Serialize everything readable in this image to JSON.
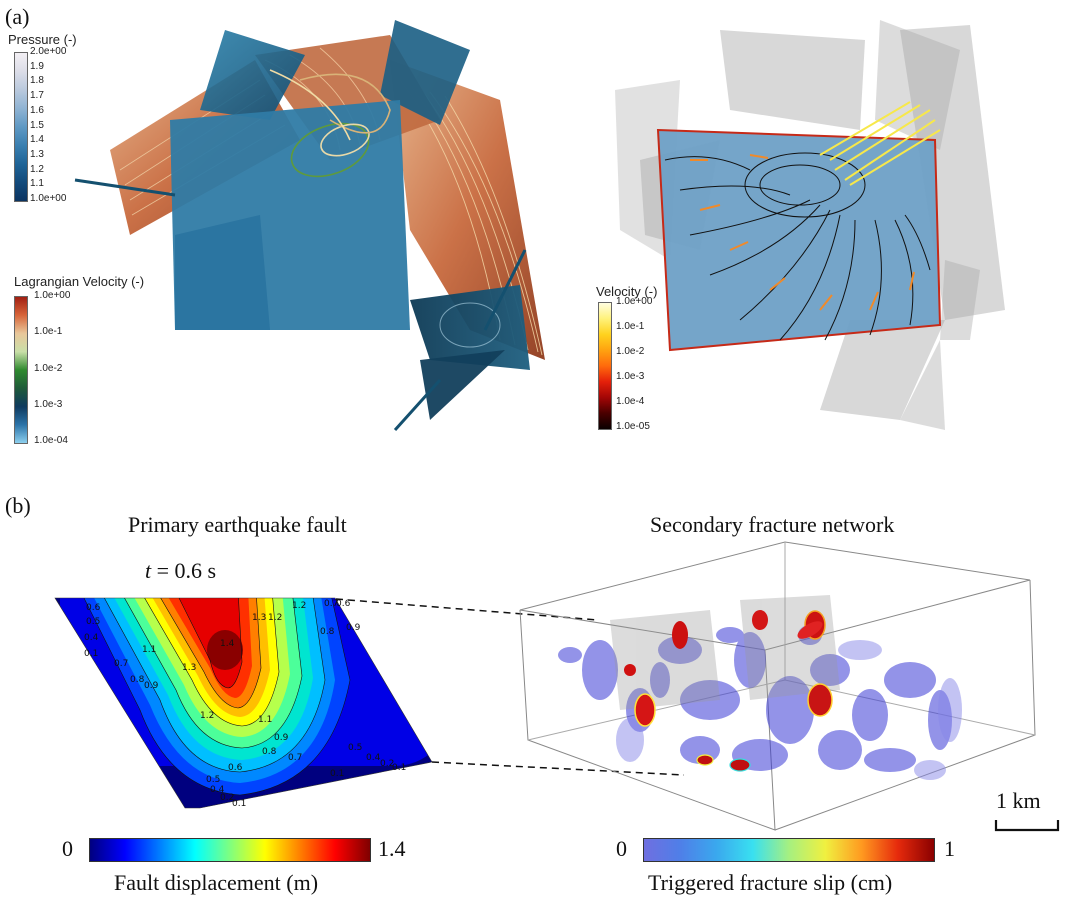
{
  "panel_a": {
    "label": "(a)",
    "pressure_colorbar": {
      "title": "Pressure (-)",
      "ticks": [
        "2.0e+00",
        "1.9",
        "1.8",
        "1.7",
        "1.6",
        "1.5",
        "1.4",
        "1.3",
        "1.2",
        "1.1",
        "1.0e+00"
      ],
      "colors": [
        "#f3f0f4",
        "#dcdde8",
        "#b9c9dd",
        "#8fb3d3",
        "#5f99c4",
        "#3a7fb0",
        "#1f6497",
        "#124a7b",
        "#0b3360"
      ]
    },
    "lagrangian_colorbar": {
      "title": "Lagrangian Velocity (-)",
      "ticks": [
        "1.0e+00",
        "1.0e-1",
        "1.0e-2",
        "1.0e-3",
        "1.0e-04"
      ],
      "colors": [
        "#a11f12",
        "#d7653a",
        "#e9c79a",
        "#c9dfa8",
        "#2f8a2f",
        "#1f5a39",
        "#0f3a5e",
        "#2b73a8",
        "#8ccfee"
      ]
    },
    "velocity_colorbar": {
      "title": "Velocity (-)",
      "ticks": [
        "1.0e+00",
        "1.0e-1",
        "1.0e-2",
        "1.0e-3",
        "1.0e-4",
        "1.0e-05"
      ],
      "colors": [
        "#fffde0",
        "#fff27a",
        "#ffd21e",
        "#ffa210",
        "#ff6a0c",
        "#e4200a",
        "#a30606",
        "#4a0000",
        "#0a0000"
      ]
    }
  },
  "panel_b": {
    "label": "(b)",
    "left_title": "Primary earthquake fault",
    "time_label_var": "t",
    "time_label_rest": "= 0.6 s",
    "contour_labels": [
      "1.4",
      "1.3",
      "1.2",
      "1.1",
      "1.3",
      "1.2",
      "1.1",
      "0.9",
      "0.8",
      "0.7",
      "0.6",
      "0.5",
      "0.4",
      "0.1",
      "0.9",
      "0.8",
      "0.7",
      "0.6",
      "0.5",
      "0.4",
      "0.2",
      "0.1",
      "0.1",
      "1.2",
      "0.9",
      "0.8",
      "0.7",
      "0.6",
      "0.5",
      "0.4",
      "0.2",
      "0.1"
    ],
    "left_colorbar": {
      "min_label": "0",
      "max_label": "1.4",
      "title": "Fault displacement (m)",
      "colors": [
        "#00007f",
        "#0000ff",
        "#007fff",
        "#00ffff",
        "#7fff7f",
        "#ffff00",
        "#ff7f00",
        "#ff0000",
        "#7f0000"
      ]
    },
    "right_title": "Secondary fracture network",
    "right_colorbar": {
      "min_label": "0",
      "max_label": "1",
      "title": "Triggered fracture slip (cm)",
      "colors": [
        "#6f6fe0",
        "#4f7fe8",
        "#3aa8ee",
        "#39e0f0",
        "#a6f080",
        "#f0f040",
        "#ff9a20",
        "#e62a0c",
        "#8a0000"
      ]
    },
    "scale_bar_label": "1 km"
  }
}
